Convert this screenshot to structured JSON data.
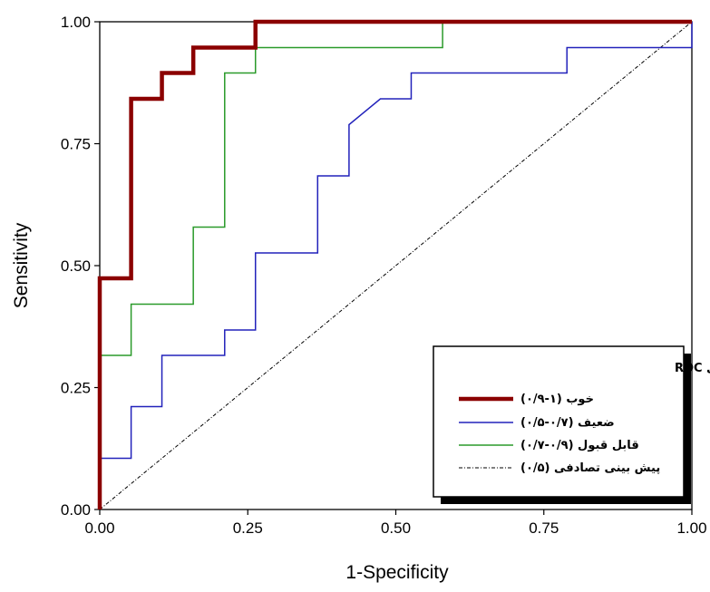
{
  "chart_data": {
    "type": "line",
    "title": "",
    "xlabel": "1-Specificity",
    "ylabel": "Sensitivity",
    "xlim": [
      0,
      1
    ],
    "ylim": [
      0,
      1
    ],
    "x_ticks": [
      "0.00",
      "0.25",
      "0.50",
      "0.75",
      "1.00"
    ],
    "y_ticks": [
      "0.00",
      "0.25",
      "0.50",
      "0.75",
      "1.00"
    ],
    "grid": false,
    "legend": {
      "title": "طبقه بندی سطح زیر منحنی ROC",
      "placement": "bottom-right",
      "entries": [
        "(۰/۹-۱) خوب",
        "(۰/۵-۰/۷) ضعیف",
        "(۰/۷-۰/۹) قابل قبول",
        "(۰/۵) پیش بینی تصادفی"
      ]
    },
    "series": [
      {
        "label": "(۰/۹-۱) خوب",
        "color": "#8b0000",
        "style": "solid-thick",
        "points": [
          [
            0,
            0
          ],
          [
            0,
            0.474
          ],
          [
            0.053,
            0.474
          ],
          [
            0.053,
            0.842
          ],
          [
            0.105,
            0.842
          ],
          [
            0.105,
            0.895
          ],
          [
            0.158,
            0.895
          ],
          [
            0.158,
            0.947
          ],
          [
            0.263,
            0.947
          ],
          [
            0.263,
            1.0
          ],
          [
            1.0,
            1.0
          ]
        ]
      },
      {
        "label": "(۰/۵-۰/۷) ضعیف",
        "color": "#2222bb",
        "style": "solid",
        "points": [
          [
            0,
            0
          ],
          [
            0,
            0.105
          ],
          [
            0.053,
            0.105
          ],
          [
            0.053,
            0.211
          ],
          [
            0.105,
            0.211
          ],
          [
            0.105,
            0.316
          ],
          [
            0.211,
            0.316
          ],
          [
            0.211,
            0.368
          ],
          [
            0.263,
            0.368
          ],
          [
            0.263,
            0.526
          ],
          [
            0.368,
            0.526
          ],
          [
            0.368,
            0.684
          ],
          [
            0.421,
            0.684
          ],
          [
            0.421,
            0.789
          ],
          [
            0.474,
            0.842
          ],
          [
            0.526,
            0.842
          ],
          [
            0.526,
            0.895
          ],
          [
            0.789,
            0.895
          ],
          [
            0.789,
            0.947
          ],
          [
            1.0,
            0.947
          ],
          [
            1.0,
            1.0
          ]
        ]
      },
      {
        "label": "(۰/۷-۰/۹) قابل قبول",
        "color": "#2a9a2a",
        "style": "solid",
        "points": [
          [
            0,
            0
          ],
          [
            0,
            0.316
          ],
          [
            0.053,
            0.316
          ],
          [
            0.053,
            0.421
          ],
          [
            0.158,
            0.421
          ],
          [
            0.158,
            0.579
          ],
          [
            0.211,
            0.579
          ],
          [
            0.211,
            0.895
          ],
          [
            0.263,
            0.895
          ],
          [
            0.263,
            0.947
          ],
          [
            0.579,
            0.947
          ],
          [
            0.579,
            1.0
          ],
          [
            1.0,
            1.0
          ]
        ]
      },
      {
        "label": "(۰/۵) پیش بینی تصادفی",
        "color": "#000000",
        "style": "dash-dot",
        "points": [
          [
            0,
            0
          ],
          [
            1,
            1
          ]
        ]
      }
    ]
  }
}
